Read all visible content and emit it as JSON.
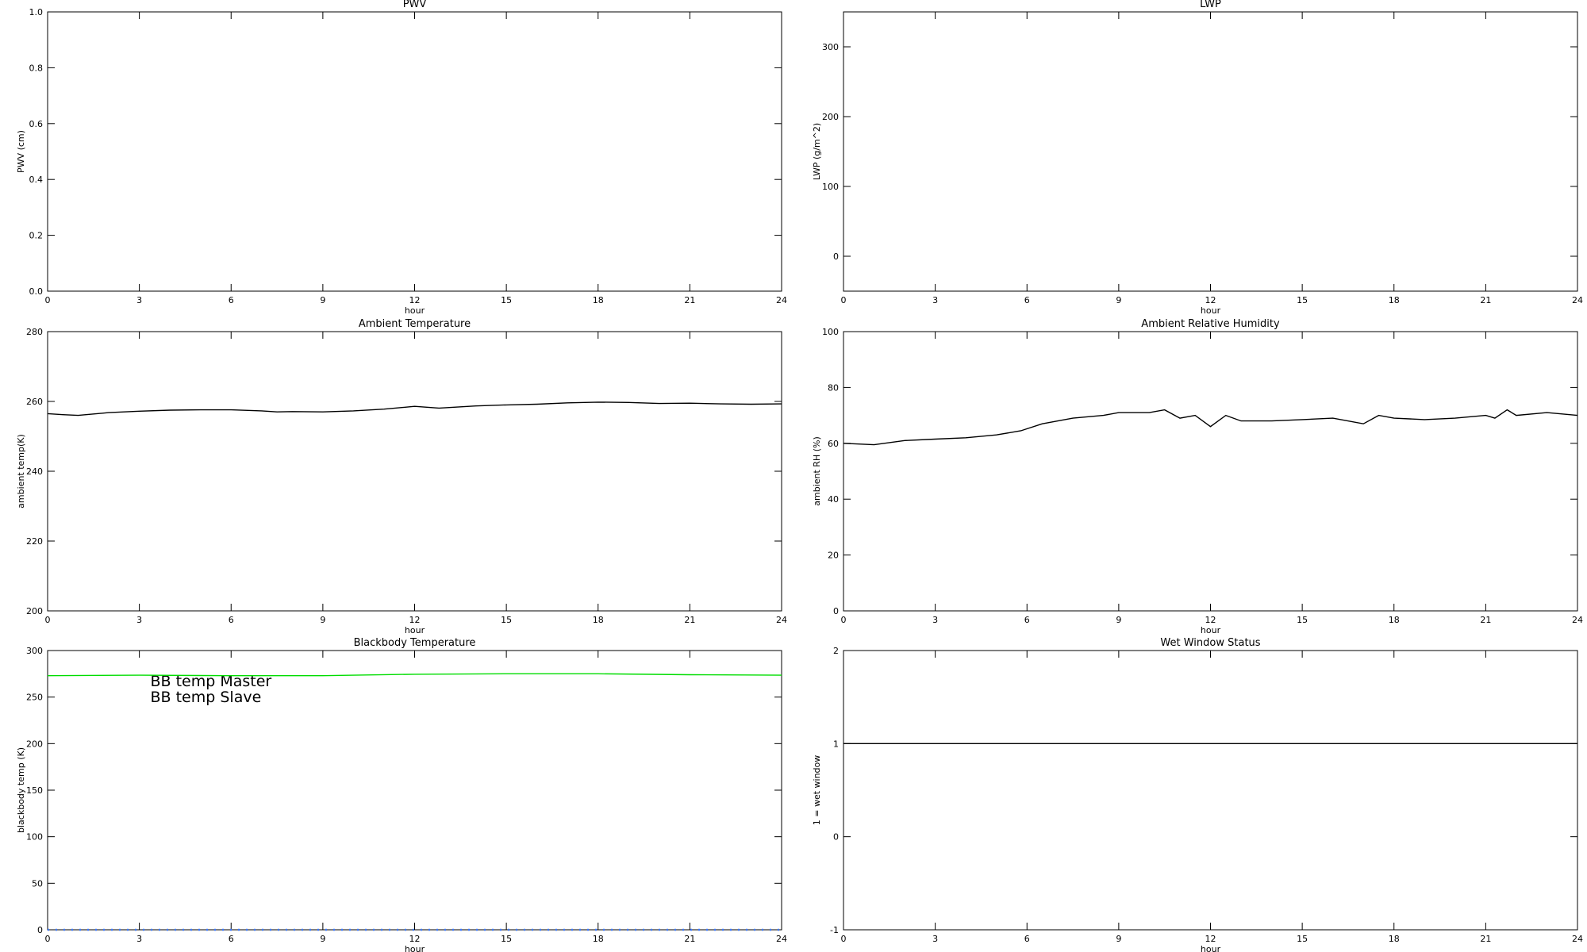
{
  "chart_data": [
    {
      "type": "line",
      "title": "PWV",
      "xlabel": "hour",
      "ylabel": "PWV (cm)",
      "xlim": [
        0,
        24
      ],
      "xticks": [
        0,
        3,
        6,
        9,
        12,
        15,
        18,
        21,
        24
      ],
      "ylim": [
        0,
        1
      ],
      "yticks": [
        {
          "value": 0,
          "label": "0.0"
        },
        {
          "value": 0.2,
          "label": "0.2"
        },
        {
          "value": 0.4,
          "label": "0.4"
        },
        {
          "value": 0.6,
          "label": "0.6"
        },
        {
          "value": 0.8,
          "label": "0.8"
        },
        {
          "value": 1,
          "label": "1.0"
        }
      ],
      "series": []
    },
    {
      "type": "line",
      "title": "LWP",
      "xlabel": "hour",
      "ylabel": "LWP (g/m^2)",
      "xlim": [
        0,
        24
      ],
      "xticks": [
        0,
        3,
        6,
        9,
        12,
        15,
        18,
        21,
        24
      ],
      "ylim": [
        -50,
        350
      ],
      "yticks": [
        0,
        100,
        200,
        300
      ],
      "series": []
    },
    {
      "type": "line",
      "title": "Ambient Temperature",
      "xlabel": "hour",
      "ylabel": "ambient temp(K)",
      "xlim": [
        0,
        24
      ],
      "xticks": [
        0,
        3,
        6,
        9,
        12,
        15,
        18,
        21,
        24
      ],
      "ylim": [
        200,
        280
      ],
      "yticks": [
        200,
        220,
        240,
        260,
        280
      ],
      "series": [
        {
          "color": "#000000",
          "x": [
            0,
            0.5,
            1,
            2,
            3,
            4,
            5,
            6,
            7,
            7.5,
            8,
            9,
            10,
            11,
            12,
            12.8,
            14,
            15,
            16,
            17,
            18,
            19,
            20,
            21,
            22,
            23,
            24
          ],
          "values": [
            256.5,
            256.2,
            256,
            256.8,
            257.2,
            257.5,
            257.6,
            257.6,
            257.3,
            257,
            257.1,
            257,
            257.3,
            257.8,
            258.6,
            258.1,
            258.7,
            259,
            259.2,
            259.6,
            259.8,
            259.7,
            259.4,
            259.5,
            259.3,
            259.2,
            259.3
          ]
        }
      ]
    },
    {
      "type": "line",
      "title": "Ambient Relative Humidity",
      "xlabel": "hour",
      "ylabel": "ambient RH (%)",
      "xlim": [
        0,
        24
      ],
      "xticks": [
        0,
        3,
        6,
        9,
        12,
        15,
        18,
        21,
        24
      ],
      "ylim": [
        0,
        100
      ],
      "yticks": [
        0,
        20,
        40,
        60,
        80,
        100
      ],
      "series": [
        {
          "color": "#000000",
          "x": [
            0,
            1,
            2,
            3,
            4,
            5,
            5.8,
            6.5,
            7.5,
            8.5,
            9,
            10,
            10.5,
            11,
            11.5,
            12,
            12.5,
            13,
            14,
            15,
            16,
            17,
            17.5,
            18,
            19,
            20,
            21,
            21.3,
            21.7,
            22,
            23,
            24
          ],
          "values": [
            60,
            59.5,
            61,
            61.5,
            62,
            63,
            64.5,
            67,
            69,
            70,
            71,
            71,
            72,
            69,
            70,
            66,
            70,
            68,
            68,
            68.5,
            69,
            67,
            70,
            69,
            68.5,
            69,
            70,
            69,
            72,
            70,
            71,
            70
          ]
        }
      ]
    },
    {
      "type": "line",
      "title": "Blackbody Temperature",
      "xlabel": "hour",
      "ylabel": "blackbody temp (K)",
      "xlim": [
        0,
        24
      ],
      "xticks": [
        0,
        3,
        6,
        9,
        12,
        15,
        18,
        21,
        24
      ],
      "ylim": [
        0,
        300
      ],
      "yticks": [
        0,
        50,
        100,
        150,
        200,
        250,
        300
      ],
      "legend": "upper left",
      "series": [
        {
          "name": "BB temp Master",
          "color": "#3c78ff",
          "linestyle": "dotted",
          "x": [
            0,
            24
          ],
          "values": [
            0,
            0
          ]
        },
        {
          "name": "BB temp Slave",
          "color": "#00dd00",
          "x": [
            0,
            3,
            6,
            9,
            12,
            15,
            18,
            21,
            24
          ],
          "values": [
            273,
            273.5,
            273,
            273,
            274.5,
            275,
            275,
            274,
            273.5
          ]
        }
      ]
    },
    {
      "type": "line",
      "title": "Wet Window Status",
      "xlabel": "hour",
      "ylabel": "1 = wet window",
      "xlim": [
        0,
        24
      ],
      "xticks": [
        0,
        3,
        6,
        9,
        12,
        15,
        18,
        21,
        24
      ],
      "ylim": [
        -1,
        2
      ],
      "yticks": [
        -1,
        0,
        1,
        2
      ],
      "series": [
        {
          "color": "#000000",
          "x": [
            0,
            24
          ],
          "values": [
            1,
            1
          ]
        }
      ]
    }
  ]
}
